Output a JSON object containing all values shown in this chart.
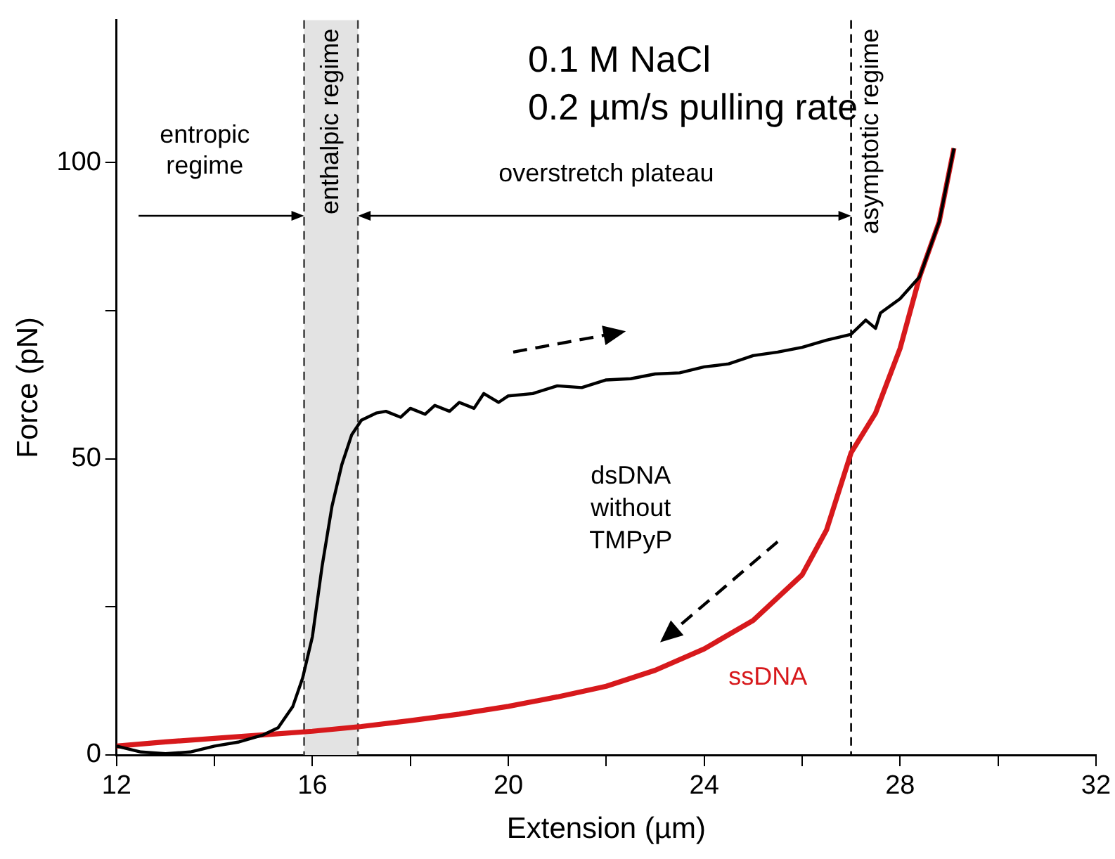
{
  "chart_data": {
    "type": "line",
    "xlabel": "Extension (µm)",
    "ylabel": "Force (pN)",
    "xlim": [
      12,
      32
    ],
    "ylim": [
      0,
      124
    ],
    "xticks": [
      12,
      {
        "value": 14,
        "label": null
      },
      16,
      {
        "value": 18,
        "label": null
      },
      20,
      {
        "value": 22,
        "label": null
      },
      24,
      {
        "value": 26,
        "label": null
      },
      28,
      {
        "value": 30,
        "label": null
      },
      32
    ],
    "yticks": [
      0,
      {
        "value": 25,
        "label": null
      },
      50,
      {
        "value": 75,
        "label": null
      },
      100
    ],
    "grid": false,
    "legend": false,
    "marker": "none",
    "line_style": "solid",
    "series": [
      {
        "name": "ssDNA",
        "color": "#d7191c",
        "x": [
          12,
          13,
          14,
          15,
          16,
          17,
          18,
          19,
          20,
          21,
          22,
          23,
          24,
          25,
          26,
          26.5,
          27,
          27.5,
          28,
          28.4,
          28.8,
          29.1
        ],
        "values": [
          1.5,
          2.2,
          2.8,
          3.4,
          4,
          4.8,
          5.8,
          6.9,
          8.2,
          9.8,
          11.6,
          14.3,
          17.9,
          22.7,
          30.4,
          38,
          51,
          57.7,
          68.6,
          80.7,
          90,
          102.4
        ]
      },
      {
        "name": "dsDNA without TMPyP",
        "color": "#000000",
        "x": [
          12,
          12.5,
          13,
          13.5,
          14,
          14.5,
          15,
          15.3,
          15.6,
          15.8,
          16,
          16.2,
          16.4,
          16.6,
          16.8,
          17,
          17.3,
          17.5,
          17.8,
          18,
          18.3,
          18.5,
          18.8,
          19,
          19.3,
          19.5,
          19.8,
          20,
          20.5,
          21,
          21.5,
          22,
          22.5,
          23,
          23.5,
          24,
          24.5,
          25,
          25.5,
          26,
          26.5,
          27,
          27.3,
          27.5,
          27.6,
          28,
          28.4,
          28.8,
          29.1
        ],
        "values": [
          1.5,
          0.5,
          0.2,
          0.5,
          1.5,
          2.2,
          3.4,
          4.6,
          8.2,
          13,
          20,
          32,
          42,
          49,
          54,
          56.5,
          57.7,
          58,
          57,
          58.5,
          57.5,
          59,
          58,
          59.5,
          58.5,
          61,
          59.5,
          60.6,
          61,
          62.3,
          62,
          63.3,
          63.5,
          64.3,
          64.5,
          65.5,
          66,
          67.4,
          68,
          68.8,
          70,
          71,
          73.4,
          72,
          74.6,
          77,
          80.7,
          90,
          102.4
        ]
      }
    ],
    "bands": [
      {
        "axis": "x",
        "from": 15.83,
        "to": 16.93,
        "label": "enthalpic regime",
        "color": "#e3e3e3"
      }
    ],
    "ref_lines": [
      {
        "axis": "x",
        "value": 15.83,
        "line_style": "dashed",
        "color": "#444444"
      },
      {
        "axis": "x",
        "value": 16.93,
        "line_style": "dashed",
        "color": "#444444"
      },
      {
        "axis": "x",
        "value": 27,
        "label": "asymptotic regime",
        "line_style": "dashed"
      }
    ],
    "annotations": [
      "0.1 M NaCl",
      "0.2 µm/s pulling rate",
      "entropic regime",
      "overstretch plateau"
    ]
  }
}
